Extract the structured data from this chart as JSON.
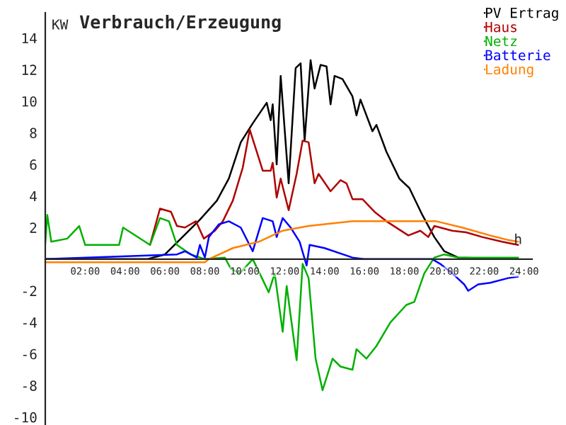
{
  "chart_data": {
    "type": "line",
    "title": "Verbrauch/Erzeugung",
    "ylabel": "KW",
    "annotations": [
      {
        "text": "h",
        "x": 23.7,
        "y": 1.2
      }
    ],
    "xlim": [
      0,
      24.4
    ],
    "xticks": [
      {
        "value": 2,
        "label": "02:00"
      },
      {
        "value": 4,
        "label": "04:00"
      },
      {
        "value": 6,
        "label": "06:00"
      },
      {
        "value": 8,
        "label": "08:00"
      },
      {
        "value": 10,
        "label": "10:00"
      },
      {
        "value": 12,
        "label": "12:00"
      },
      {
        "value": 14,
        "label": "14:00"
      },
      {
        "value": 16,
        "label": "16:00"
      },
      {
        "value": 18,
        "label": "18:00"
      },
      {
        "value": 20,
        "label": "20:00"
      },
      {
        "value": 22,
        "label": "22:00"
      },
      {
        "value": 24,
        "label": "24:00"
      }
    ],
    "ylim": [
      -10.5,
      15.6
    ],
    "yticks": [
      -10,
      -8,
      -6,
      -4,
      -2,
      2,
      4,
      6,
      8,
      10,
      12,
      14
    ],
    "grid": false,
    "legend": "top right",
    "series": [
      {
        "name": "PV Ertrag",
        "color": "#000000",
        "x": [
          0,
          5.1,
          6.0,
          7.75,
          8.6,
          9.2,
          9.8,
          10.4,
          11.1,
          11.3,
          11.4,
          11.6,
          11.8,
          12.2,
          12.55,
          12.8,
          13.0,
          13.3,
          13.5,
          13.8,
          14.1,
          14.3,
          14.5,
          14.9,
          15.4,
          15.6,
          15.8,
          16.4,
          16.6,
          17.1,
          17.75,
          18.25,
          18.9,
          19.5,
          20.0,
          20.7,
          23.7
        ],
        "values": [
          0,
          0,
          0.3,
          2.5,
          3.7,
          5.1,
          7.4,
          8.6,
          9.9,
          8.8,
          9.8,
          6.0,
          11.6,
          4.8,
          12.1,
          12.4,
          7.5,
          12.6,
          10.8,
          12.3,
          12.2,
          9.8,
          11.6,
          11.4,
          10.3,
          9.1,
          10.1,
          8.1,
          8.5,
          6.8,
          5.1,
          4.5,
          2.8,
          1.4,
          0.5,
          0.1,
          0
        ]
      },
      {
        "name": "Haus",
        "color": "#b00000",
        "x": [
          5.25,
          5.75,
          6.3,
          6.6,
          7.0,
          7.55,
          7.95,
          8.5,
          8.9,
          9.4,
          9.9,
          10.25,
          10.6,
          10.9,
          11.3,
          11.4,
          11.6,
          11.8,
          12.2,
          12.6,
          12.9,
          13.2,
          13.5,
          13.7,
          14.3,
          14.8,
          15.1,
          15.4,
          15.9,
          16.5,
          17.1,
          18.2,
          18.8,
          19.2,
          19.5,
          20.4,
          21.1,
          21.9,
          22.9,
          23.7
        ],
        "values": [
          0.9,
          3.2,
          3.0,
          2.1,
          2.0,
          2.4,
          1.3,
          1.8,
          2.4,
          3.7,
          5.8,
          8.2,
          6.8,
          5.6,
          5.6,
          6.1,
          3.9,
          5.1,
          3.1,
          5.4,
          7.5,
          7.4,
          4.8,
          5.4,
          4.3,
          5.0,
          4.8,
          3.8,
          3.8,
          3.0,
          2.4,
          1.5,
          1.8,
          1.4,
          2.1,
          1.8,
          1.7,
          1.4,
          1.1,
          0.9
        ]
      },
      {
        "name": "Netz",
        "color": "#00b000",
        "x": [
          0,
          0.1,
          0.3,
          1.1,
          1.7,
          2.0,
          3.7,
          3.9,
          5.25,
          5.75,
          6.2,
          6.6,
          7.3,
          8.0,
          9.0,
          9.3,
          9.75,
          10.4,
          10.9,
          11.2,
          11.5,
          11.9,
          12.1,
          12.6,
          12.9,
          13.2,
          13.55,
          13.9,
          14.4,
          14.8,
          15.4,
          15.6,
          16.1,
          16.6,
          17.3,
          18.1,
          18.5,
          19.0,
          19.5,
          20.0,
          20.7,
          23.7
        ],
        "values": [
          1.0,
          2.8,
          1.1,
          1.3,
          2.1,
          0.9,
          0.9,
          2.0,
          0.9,
          2.6,
          2.4,
          0.9,
          0.3,
          0.0,
          0.1,
          -0.6,
          -0.9,
          0.0,
          -1.3,
          -2.1,
          -0.9,
          -4.6,
          -1.7,
          -6.4,
          -0.3,
          -1.2,
          -6.3,
          -8.3,
          -6.3,
          -6.8,
          -7.0,
          -5.7,
          -6.3,
          -5.5,
          -4.0,
          -2.9,
          -2.7,
          -0.9,
          0.1,
          0.3,
          0.1,
          0.1
        ]
      },
      {
        "name": "Batterie",
        "color": "#0000ff",
        "x": [
          0,
          6.6,
          7.0,
          7.6,
          7.75,
          8.0,
          8.2,
          8.7,
          9.2,
          9.8,
          10.4,
          10.9,
          11.4,
          11.6,
          11.9,
          12.3,
          12.75,
          13.1,
          13.25,
          14.0,
          15.4,
          16.0,
          19.4,
          19.8,
          20.4,
          21.0,
          21.2,
          21.7,
          22.3,
          23.2,
          23.7
        ],
        "values": [
          0,
          0.3,
          0.5,
          0.1,
          0.9,
          0.1,
          1.4,
          2.2,
          2.4,
          2.0,
          0.5,
          2.6,
          2.4,
          1.4,
          2.6,
          2.0,
          1.1,
          -0.4,
          0.9,
          0.7,
          0.1,
          0,
          0,
          -0.3,
          -0.9,
          -1.6,
          -2.0,
          -1.6,
          -1.5,
          -1.2,
          -1.1
        ]
      },
      {
        "name": "Ladung",
        "color": "#ff8000",
        "x": [
          0,
          8.0,
          8.2,
          9.4,
          10.7,
          11.9,
          13.2,
          15.4,
          19.6,
          20.9,
          22.3,
          23.25,
          23.7
        ],
        "values": [
          -0.2,
          -0.2,
          0,
          0.7,
          1.1,
          1.8,
          2.1,
          2.4,
          2.4,
          2.0,
          1.5,
          1.2,
          1.1
        ]
      }
    ]
  }
}
